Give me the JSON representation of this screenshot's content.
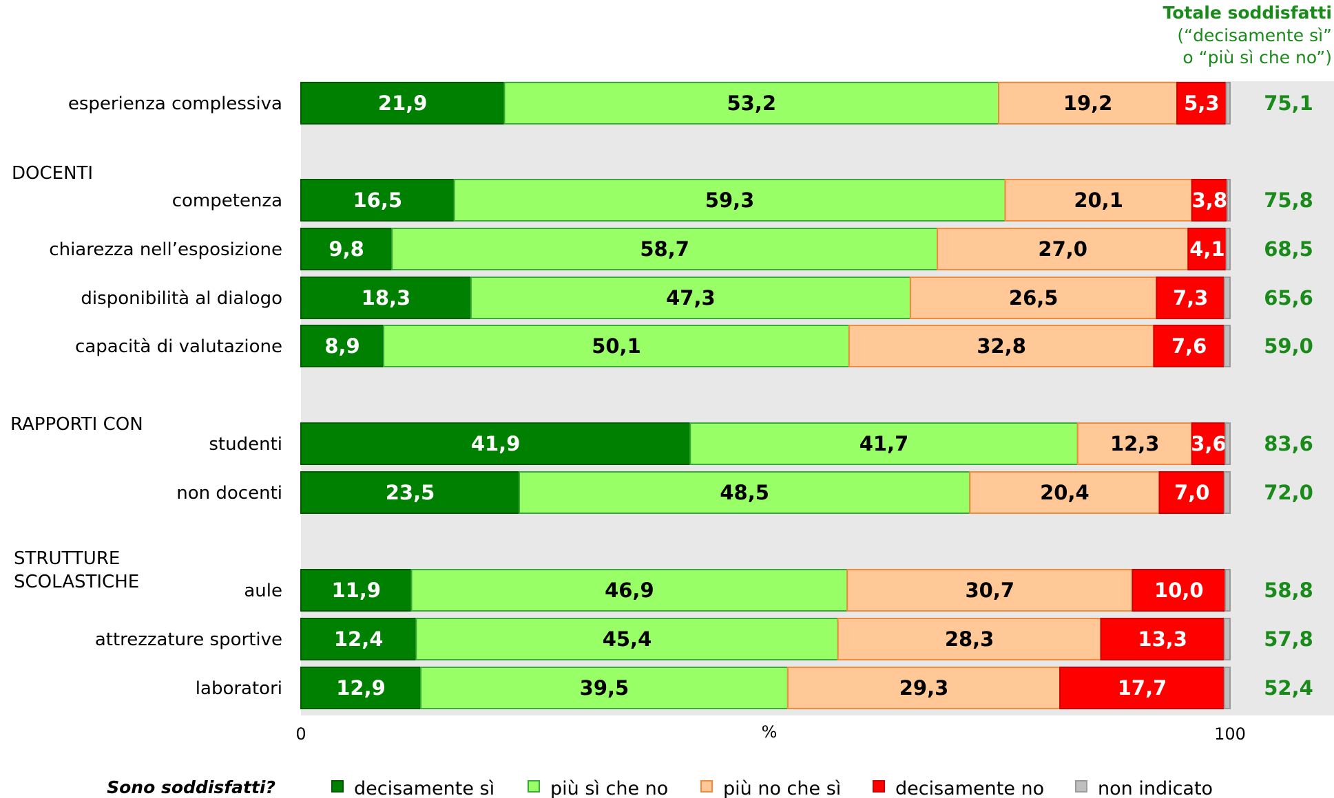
{
  "chart_data": {
    "type": "bar",
    "orientation": "horizontal",
    "stacked": true,
    "xlabel": "%",
    "xlim": [
      0,
      100
    ],
    "x_ticks": [
      "0",
      "100"
    ],
    "series": [
      {
        "name": "decisamente sì",
        "color": "#008000",
        "text_color": "#ffffff"
      },
      {
        "name": "più sì che no",
        "color": "#99ff66",
        "text_color": "#000000"
      },
      {
        "name": "più no che sì",
        "color": "#ffc896",
        "text_color": "#000000"
      },
      {
        "name": "decisamente no",
        "color": "#ff0000",
        "text_color": "#ffffff"
      },
      {
        "name": "non indicato",
        "color": "#bfbfbf",
        "text_color": "#000000"
      }
    ],
    "rows": [
      {
        "category": "esperienza complessiva",
        "values": [
          21.9,
          53.2,
          19.2,
          5.3,
          0.4
        ],
        "labels": [
          "21,9",
          "53,2",
          "19,2",
          "5,3",
          ""
        ],
        "total": "75,1"
      },
      {
        "category": "competenza",
        "group": "DOCENTI",
        "values": [
          16.5,
          59.3,
          20.1,
          3.8,
          0.3
        ],
        "labels": [
          "16,5",
          "59,3",
          "20,1",
          "3,8",
          ""
        ],
        "total": "75,8"
      },
      {
        "category": "chiarezza nell’esposizione",
        "values": [
          9.8,
          58.7,
          27.0,
          4.1,
          0.4
        ],
        "labels": [
          "9,8",
          "58,7",
          "27,0",
          "4,1",
          ""
        ],
        "total": "68,5"
      },
      {
        "category": "disponibilità al dialogo",
        "values": [
          18.3,
          47.3,
          26.5,
          7.3,
          0.6
        ],
        "labels": [
          "18,3",
          "47,3",
          "26,5",
          "7,3",
          ""
        ],
        "total": "65,6"
      },
      {
        "category": "capacità di valutazione",
        "values": [
          8.9,
          50.1,
          32.8,
          7.6,
          0.6
        ],
        "labels": [
          "8,9",
          "50,1",
          "32,8",
          "7,6",
          ""
        ],
        "total": "59,0"
      },
      {
        "category": "studenti",
        "group": "RAPPORTI CON",
        "values": [
          41.9,
          41.7,
          12.3,
          3.6,
          0.5
        ],
        "labels": [
          "41,9",
          "41,7",
          "12,3",
          "3,6",
          ""
        ],
        "total": "83,6"
      },
      {
        "category": "non docenti",
        "values": [
          23.5,
          48.5,
          20.4,
          7.0,
          0.6
        ],
        "labels": [
          "23,5",
          "48,5",
          "20,4",
          "7,0",
          ""
        ],
        "total": "72,0"
      },
      {
        "category": "aule",
        "group": "STRUTTURE\nSCOLASTICHE",
        "values": [
          11.9,
          46.9,
          30.7,
          10.0,
          0.5
        ],
        "labels": [
          "11,9",
          "46,9",
          "30,7",
          "10,0",
          ""
        ],
        "total": "58,8"
      },
      {
        "category": "attrezzature sportive",
        "values": [
          12.4,
          45.4,
          28.3,
          13.3,
          0.6
        ],
        "labels": [
          "12,4",
          "45,4",
          "28,3",
          "13,3",
          ""
        ],
        "total": "57,8"
      },
      {
        "category": "laboratori",
        "values": [
          12.9,
          39.5,
          29.3,
          17.7,
          0.6
        ],
        "labels": [
          "12,9",
          "39,5",
          "29,3",
          "17,7",
          ""
        ],
        "total": "52,4"
      }
    ],
    "totals_header": {
      "title": "Totale soddisfatti",
      "line2": "(“decisamente sì”",
      "line3": "o “più sì che no”)",
      "color": "#1a8a1a"
    },
    "legend": {
      "title": "Sono soddisfatti?",
      "placement": "bottom"
    },
    "plot_background": "#e8e8e8"
  }
}
